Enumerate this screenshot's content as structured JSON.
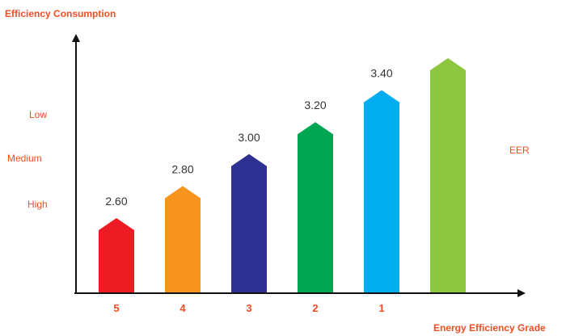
{
  "chart_data": {
    "type": "bar",
    "ylabel": "Efficiency Consumption",
    "xlabel": "Energy Efficiency Grade",
    "categories": [
      "5",
      "4",
      "3",
      "2",
      "1",
      ""
    ],
    "values": [
      2.6,
      2.8,
      3.0,
      3.2,
      3.4,
      3.6
    ],
    "data_labels": [
      "2.60",
      "2.80",
      "3.00",
      "3.20",
      "3.40",
      ""
    ],
    "bar_colors": [
      "#ed1c24",
      "#f7941d",
      "#2e3192",
      "#00a651",
      "#00aeef",
      "#8dc63f"
    ],
    "y_level_labels": [
      "Low",
      "Medium",
      "High"
    ],
    "series_label": "EER",
    "ylim": [
      2.0,
      3.8
    ],
    "grid": false,
    "label_color": "#f04e23"
  }
}
